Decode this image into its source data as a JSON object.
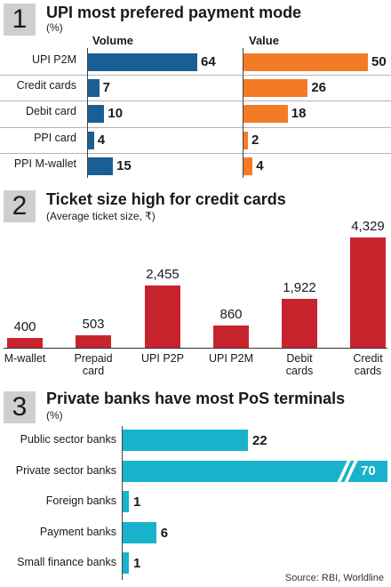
{
  "source": "Source: RBI, Worldline",
  "colors": {
    "blue": "#1a5f93",
    "orange": "#f47b26",
    "red": "#c8242e",
    "cyan": "#19b2cc"
  },
  "chart_data": [
    {
      "type": "bar",
      "number": "1",
      "title": "UPI most prefered payment mode",
      "subtitle": "(%)",
      "categories": [
        "UPI P2M",
        "Credit cards",
        "Debit card",
        "PPI card",
        "PPI M-wallet"
      ],
      "series": [
        {
          "name": "Volume",
          "values": [
            64,
            7,
            10,
            4,
            15
          ]
        },
        {
          "name": "Value",
          "values": [
            50,
            26,
            18,
            2,
            4
          ]
        }
      ]
    },
    {
      "type": "bar",
      "number": "2",
      "title": "Ticket size high for credit cards",
      "subtitle": "(Average ticket size, ₹)",
      "categories": [
        [
          "M-wallet"
        ],
        [
          "Prepaid",
          "card"
        ],
        [
          "UPI P2P"
        ],
        [
          "UPI P2M"
        ],
        [
          "Debit",
          "cards"
        ],
        [
          "Credit",
          "cards"
        ]
      ],
      "values": [
        400,
        503,
        2455,
        860,
        1922,
        4329
      ],
      "value_labels": [
        "400",
        "503",
        "2,455",
        "860",
        "1,922",
        "4,329"
      ]
    },
    {
      "type": "bar",
      "number": "3",
      "title": "Private banks have most PoS terminals",
      "subtitle": "(%)",
      "categories": [
        "Public sector banks",
        "Private sector banks",
        "Foreign banks",
        "Payment banks",
        "Small finance banks"
      ],
      "values": [
        22,
        70,
        1,
        6,
        1
      ],
      "axis_break": "Private sector banks"
    }
  ]
}
